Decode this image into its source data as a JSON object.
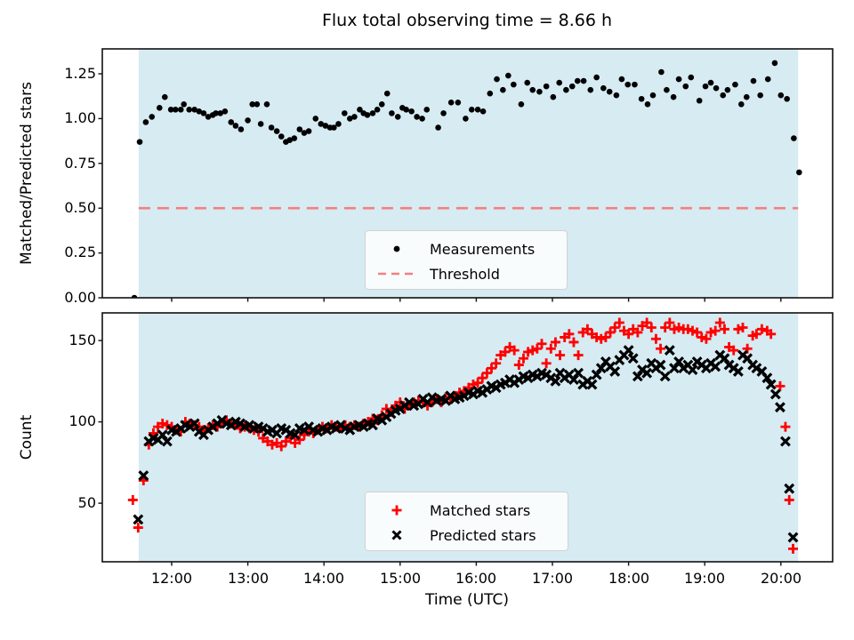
{
  "figure": {
    "title": "Flux total observing time = 8.66 h",
    "total_observing_time_hours": 8.66,
    "background_color": "#ffffff",
    "shade_color": "#d6ebf2",
    "threshold_color": "#f28080",
    "matched_color": "#ff0000",
    "point_color": "#000000",
    "spine_color": "#111111",
    "observing_window": {
      "start_hour": 11.567,
      "end_hour": 20.227
    }
  },
  "chart_data": [
    {
      "type": "scatter",
      "title": "Flux total observing time = 8.66 h",
      "ylabel": "Matched/Predicted stars",
      "xlabel": "",
      "ylim": [
        0,
        1.389
      ],
      "xlim_hours": [
        11.089,
        20.68
      ],
      "grid": false,
      "yticks": [
        0,
        0.25,
        0.5,
        0.75,
        1.0,
        1.25
      ],
      "ytick_labels": [
        "0.00",
        "0.25",
        "0.50",
        "0.75",
        "1.00",
        "1.25"
      ],
      "threshold_value": 0.5,
      "legend": [
        "Measurements",
        "Threshold"
      ],
      "legend_position": "lower center",
      "series": [
        {
          "name": "Measurements",
          "marker": "dot",
          "color": "#000000",
          "x": [
            11.51,
            11.58,
            11.66,
            11.74,
            11.84,
            11.91,
            11.99,
            12.05,
            12.12,
            12.16,
            12.23,
            12.3,
            12.36,
            12.42,
            12.48,
            12.54,
            12.58,
            12.64,
            12.7,
            12.78,
            12.84,
            12.91,
            13.0,
            13.06,
            13.12,
            13.17,
            13.25,
            13.31,
            13.38,
            13.44,
            13.5,
            13.55,
            13.61,
            13.68,
            13.74,
            13.8,
            13.89,
            13.96,
            14.02,
            14.08,
            14.13,
            14.19,
            14.27,
            14.34,
            14.4,
            14.47,
            14.52,
            14.57,
            14.64,
            14.7,
            14.76,
            14.83,
            14.89,
            14.97,
            15.03,
            15.08,
            15.15,
            15.22,
            15.29,
            15.35,
            15.5,
            15.57,
            15.67,
            15.76,
            15.86,
            15.94,
            16.02,
            16.09,
            16.18,
            16.27,
            16.35,
            16.42,
            16.49,
            16.59,
            16.67,
            16.74,
            16.83,
            16.92,
            17.01,
            17.09,
            17.18,
            17.26,
            17.33,
            17.41,
            17.5,
            17.58,
            17.67,
            17.75,
            17.84,
            17.91,
            17.99,
            18.08,
            18.17,
            18.25,
            18.32,
            18.43,
            18.5,
            18.59,
            18.66,
            18.75,
            18.82,
            18.93,
            19.01,
            19.08,
            19.15,
            19.24,
            19.3,
            19.4,
            19.48,
            19.55,
            19.64,
            19.73,
            19.83,
            19.92,
            20.0,
            20.08,
            20.17,
            20.24
          ],
          "y": [
            0.0,
            0.87,
            0.98,
            1.01,
            1.06,
            1.12,
            1.05,
            1.05,
            1.05,
            1.08,
            1.05,
            1.05,
            1.04,
            1.03,
            1.01,
            1.02,
            1.03,
            1.03,
            1.04,
            0.98,
            0.96,
            0.94,
            0.99,
            1.08,
            1.08,
            0.97,
            1.08,
            0.95,
            0.93,
            0.9,
            0.87,
            0.88,
            0.89,
            0.94,
            0.92,
            0.93,
            1.0,
            0.97,
            0.96,
            0.95,
            0.95,
            0.97,
            1.03,
            1.0,
            1.01,
            1.05,
            1.03,
            1.02,
            1.03,
            1.05,
            1.08,
            1.14,
            1.03,
            1.01,
            1.06,
            1.05,
            1.04,
            1.01,
            1.0,
            1.05,
            0.95,
            1.03,
            1.09,
            1.09,
            1.0,
            1.05,
            1.05,
            1.04,
            1.14,
            1.22,
            1.16,
            1.24,
            1.19,
            1.08,
            1.2,
            1.16,
            1.15,
            1.18,
            1.12,
            1.2,
            1.16,
            1.18,
            1.21,
            1.21,
            1.16,
            1.23,
            1.17,
            1.15,
            1.13,
            1.22,
            1.19,
            1.19,
            1.11,
            1.08,
            1.13,
            1.26,
            1.16,
            1.12,
            1.22,
            1.18,
            1.23,
            1.1,
            1.18,
            1.2,
            1.17,
            1.13,
            1.16,
            1.19,
            1.08,
            1.12,
            1.21,
            1.13,
            1.22,
            1.31,
            1.13,
            1.11,
            0.89,
            0.7
          ]
        }
      ]
    },
    {
      "type": "scatter",
      "ylabel": "Count",
      "xlabel": "Time (UTC)",
      "ylim": [
        14,
        167
      ],
      "xlim_hours": [
        11.089,
        20.68
      ],
      "grid": false,
      "yticks": [
        50,
        100,
        150
      ],
      "ytick_labels": [
        "50",
        "100",
        "150"
      ],
      "xticks": [
        {
          "hour": 12,
          "label": "12:00"
        },
        {
          "hour": 13,
          "label": "13:00"
        },
        {
          "hour": 14,
          "label": "14:00"
        },
        {
          "hour": 15,
          "label": "15:00"
        },
        {
          "hour": 16,
          "label": "16:00"
        },
        {
          "hour": 17,
          "label": "17:00"
        },
        {
          "hour": 18,
          "label": "18:00"
        },
        {
          "hour": 19,
          "label": "19:00"
        },
        {
          "hour": 20,
          "label": "20:00"
        }
      ],
      "legend": [
        "Matched stars",
        "Predicted stars"
      ],
      "legend_position": "lower center",
      "series": [
        {
          "name": "Matched stars",
          "marker": "plus",
          "color": "#ff0000",
          "x": [
            11.49,
            11.56,
            11.63,
            11.7,
            11.76,
            11.82,
            11.88,
            11.94,
            12.0,
            12.06,
            12.12,
            12.18,
            12.24,
            12.3,
            12.36,
            12.42,
            12.48,
            12.54,
            12.6,
            12.66,
            12.72,
            12.78,
            12.84,
            12.9,
            12.96,
            13.02,
            13.08,
            13.14,
            13.2,
            13.26,
            13.32,
            13.38,
            13.44,
            13.5,
            13.56,
            13.62,
            13.68,
            13.74,
            13.8,
            13.86,
            13.92,
            13.98,
            14.04,
            14.1,
            14.16,
            14.22,
            14.28,
            14.34,
            14.4,
            14.46,
            14.52,
            14.58,
            14.64,
            14.7,
            14.76,
            14.82,
            14.88,
            14.94,
            15.0,
            15.06,
            15.12,
            15.18,
            15.24,
            15.3,
            15.36,
            15.42,
            15.48,
            15.54,
            15.6,
            15.66,
            15.72,
            15.78,
            15.84,
            15.9,
            15.96,
            16.02,
            16.08,
            16.14,
            16.2,
            16.26,
            16.32,
            16.38,
            16.44,
            16.5,
            16.56,
            16.62,
            16.68,
            16.74,
            16.8,
            16.86,
            16.92,
            16.98,
            17.04,
            17.1,
            17.16,
            17.22,
            17.28,
            17.34,
            17.4,
            17.46,
            17.52,
            17.58,
            17.64,
            17.7,
            17.76,
            17.82,
            17.88,
            17.94,
            18.0,
            18.06,
            18.12,
            18.18,
            18.24,
            18.3,
            18.36,
            18.42,
            18.48,
            18.54,
            18.6,
            18.66,
            18.72,
            18.78,
            18.84,
            18.9,
            18.96,
            19.02,
            19.08,
            19.14,
            19.2,
            19.26,
            19.32,
            19.38,
            19.44,
            19.5,
            19.56,
            19.63,
            19.68,
            19.75,
            19.82,
            19.87,
            19.99,
            20.06,
            20.11,
            20.16
          ],
          "y": [
            52,
            35,
            64,
            86,
            93,
            97,
            99,
            98,
            97,
            95,
            94,
            100,
            99,
            98,
            97,
            95,
            96,
            98,
            97,
            99,
            101,
            99,
            98,
            96,
            97,
            96,
            95,
            94,
            90,
            88,
            86,
            87,
            85,
            88,
            90,
            87,
            89,
            92,
            94,
            93,
            95,
            97,
            96,
            98,
            97,
            96,
            98,
            97,
            98,
            97,
            99,
            100,
            102,
            101,
            104,
            108,
            106,
            110,
            112,
            108,
            110,
            112,
            113,
            112,
            110,
            112,
            114,
            112,
            115,
            114,
            116,
            118,
            119,
            121,
            123,
            124,
            127,
            130,
            133,
            136,
            141,
            143,
            146,
            144,
            135,
            139,
            143,
            144,
            145,
            148,
            136,
            145,
            149,
            141,
            152,
            154,
            149,
            141,
            155,
            157,
            154,
            152,
            151,
            152,
            155,
            158,
            161,
            156,
            154,
            157,
            155,
            159,
            161,
            158,
            151,
            145,
            158,
            161,
            157,
            158,
            157,
            157,
            156,
            155,
            152,
            151,
            155,
            156,
            161,
            157,
            146,
            144,
            157,
            158,
            145,
            153,
            154,
            157,
            156,
            154,
            122,
            97,
            52,
            22
          ]
        },
        {
          "name": "Predicted stars",
          "marker": "x",
          "color": "#000000",
          "x": [
            11.56,
            11.63,
            11.7,
            11.76,
            11.82,
            11.88,
            11.94,
            12.0,
            12.06,
            12.12,
            12.18,
            12.24,
            12.3,
            12.36,
            12.42,
            12.48,
            12.54,
            12.6,
            12.66,
            12.72,
            12.78,
            12.84,
            12.9,
            12.96,
            13.02,
            13.08,
            13.14,
            13.2,
            13.26,
            13.32,
            13.38,
            13.44,
            13.5,
            13.56,
            13.62,
            13.68,
            13.74,
            13.8,
            13.86,
            13.92,
            13.98,
            14.04,
            14.1,
            14.16,
            14.22,
            14.28,
            14.34,
            14.4,
            14.46,
            14.52,
            14.58,
            14.64,
            14.7,
            14.76,
            14.82,
            14.88,
            14.94,
            15.0,
            15.06,
            15.12,
            15.18,
            15.24,
            15.3,
            15.36,
            15.42,
            15.48,
            15.54,
            15.6,
            15.66,
            15.72,
            15.78,
            15.84,
            15.9,
            15.96,
            16.02,
            16.08,
            16.14,
            16.2,
            16.26,
            16.32,
            16.38,
            16.44,
            16.5,
            16.56,
            16.62,
            16.68,
            16.74,
            16.8,
            16.86,
            16.92,
            16.98,
            17.04,
            17.1,
            17.16,
            17.22,
            17.28,
            17.34,
            17.4,
            17.46,
            17.52,
            17.58,
            17.64,
            17.7,
            17.76,
            17.82,
            17.88,
            17.94,
            18.0,
            18.06,
            18.12,
            18.18,
            18.24,
            18.3,
            18.36,
            18.42,
            18.48,
            18.54,
            18.6,
            18.66,
            18.72,
            18.78,
            18.84,
            18.9,
            18.96,
            19.02,
            19.08,
            19.14,
            19.2,
            19.26,
            19.32,
            19.38,
            19.44,
            19.5,
            19.56,
            19.63,
            19.68,
            19.75,
            19.82,
            19.87,
            19.93,
            19.99,
            20.06,
            20.11,
            20.16
          ],
          "y": [
            40,
            67,
            88,
            90,
            89,
            92,
            88,
            95,
            94,
            96,
            98,
            97,
            99,
            94,
            92,
            95,
            97,
            99,
            101,
            99,
            98,
            100,
            99,
            97,
            98,
            96,
            97,
            96,
            94,
            95,
            93,
            96,
            95,
            93,
            92,
            96,
            95,
            97,
            95,
            94,
            96,
            95,
            97,
            96,
            98,
            96,
            95,
            97,
            98,
            97,
            99,
            98,
            102,
            101,
            103,
            105,
            107,
            108,
            110,
            112,
            110,
            111,
            114,
            112,
            115,
            113,
            114,
            113,
            116,
            114,
            115,
            116,
            118,
            117,
            119,
            118,
            120,
            122,
            121,
            123,
            124,
            126,
            124,
            126,
            128,
            127,
            129,
            128,
            130,
            129,
            127,
            125,
            130,
            127,
            129,
            126,
            130,
            123,
            125,
            123,
            129,
            133,
            137,
            134,
            131,
            138,
            141,
            144,
            139,
            128,
            132,
            130,
            136,
            133,
            135,
            128,
            144,
            133,
            137,
            133,
            135,
            132,
            137,
            135,
            133,
            136,
            134,
            141,
            139,
            135,
            133,
            131,
            141,
            139,
            135,
            133,
            131,
            127,
            123,
            117,
            109,
            88,
            59,
            29
          ]
        }
      ]
    }
  ]
}
